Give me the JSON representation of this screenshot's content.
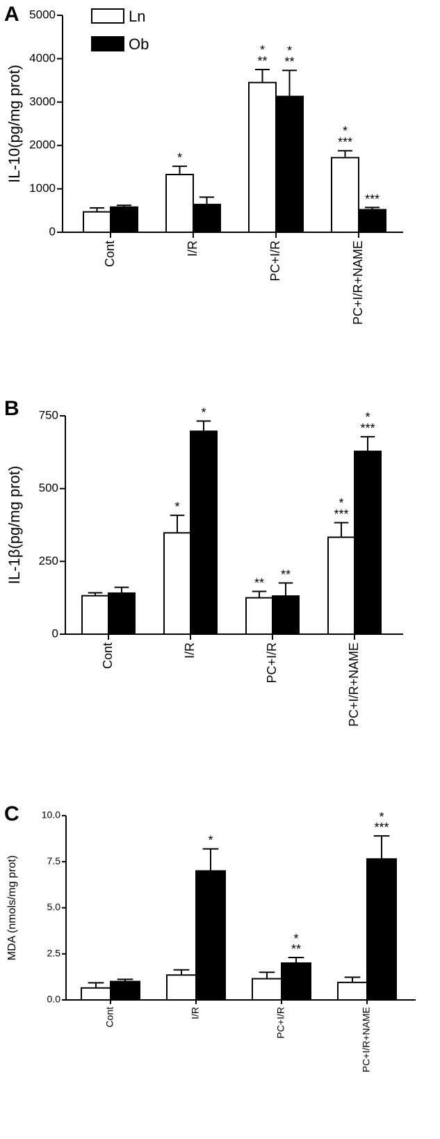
{
  "colors": {
    "ln_fill": "#ffffff",
    "ob_fill": "#000000",
    "stroke": "#000000"
  },
  "legend": [
    {
      "label": "Ln",
      "fill": "white"
    },
    {
      "label": "Ob",
      "fill": "black"
    }
  ],
  "chart_data": [
    {
      "panel": "A",
      "type": "bar",
      "ylabel": "IL-10(pg/mg prot)",
      "ylim": [
        0,
        5000
      ],
      "yticks": [
        0,
        1000,
        2000,
        3000,
        4000,
        5000
      ],
      "ytick_labels": [
        "0",
        "1000",
        "2000",
        "3000",
        "4000",
        "5000"
      ],
      "categories": [
        "Cont",
        "I/R",
        "PC+I/R",
        "PC+I/R+NAME"
      ],
      "series": [
        {
          "name": "Ln",
          "values": [
            470,
            1330,
            3450,
            1720
          ],
          "errors": [
            90,
            190,
            300,
            160
          ],
          "annotations": [
            "",
            "*",
            "*\n**",
            "*\n***"
          ]
        },
        {
          "name": "Ob",
          "values": [
            580,
            640,
            3130,
            520
          ],
          "errors": [
            40,
            170,
            600,
            50
          ],
          "annotations": [
            "",
            "",
            "*\n**",
            "***"
          ]
        }
      ]
    },
    {
      "panel": "B",
      "type": "bar",
      "ylabel": "IL-1β(pg/mg prot)",
      "ylim": [
        0,
        750
      ],
      "yticks": [
        0,
        250,
        500,
        750
      ],
      "ytick_labels": [
        "0",
        "250",
        "500",
        "750"
      ],
      "categories": [
        "Cont",
        "I/R",
        "PC+I/R",
        "PC+I/R+NAME"
      ],
      "series": [
        {
          "name": "Ln",
          "values": [
            132,
            348,
            125,
            333
          ],
          "errors": [
            10,
            60,
            22,
            50
          ],
          "annotations": [
            "",
            "*",
            "**",
            "*\n***"
          ]
        },
        {
          "name": "Ob",
          "values": [
            141,
            697,
            131,
            628
          ],
          "errors": [
            20,
            35,
            45,
            50
          ],
          "annotations": [
            "",
            "*",
            "**",
            "*\n***"
          ]
        }
      ]
    },
    {
      "panel": "C",
      "type": "bar",
      "ylabel": "MDA (nmols/mg prot)",
      "ylim": [
        0,
        10.0
      ],
      "yticks": [
        0,
        2.5,
        5.0,
        7.5,
        10.0
      ],
      "ytick_labels": [
        "0.0",
        "2.5",
        "5.0",
        "7.5",
        "10.0"
      ],
      "categories": [
        "Cont",
        "I/R",
        "PC+I/R",
        "PC+I/R+NAME"
      ],
      "series": [
        {
          "name": "Ln",
          "values": [
            0.65,
            1.35,
            1.15,
            0.95
          ],
          "errors": [
            0.28,
            0.28,
            0.35,
            0.28
          ],
          "annotations": [
            "",
            "",
            "",
            ""
          ]
        },
        {
          "name": "Ob",
          "values": [
            1.0,
            7.0,
            2.0,
            7.65
          ],
          "errors": [
            0.12,
            1.2,
            0.3,
            1.25
          ],
          "annotations": [
            "",
            "*",
            "*\n**",
            "*\n***"
          ]
        }
      ]
    }
  ]
}
